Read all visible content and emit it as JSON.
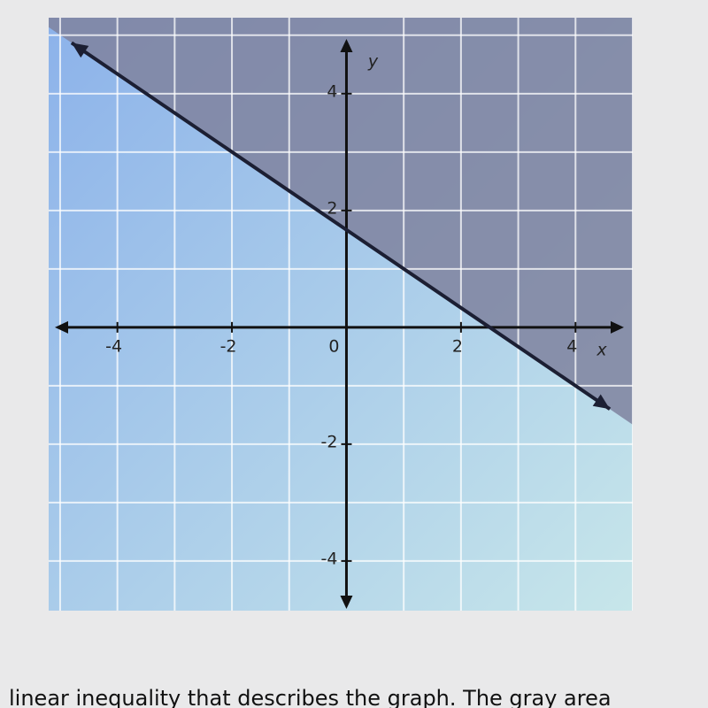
{
  "chart_data": {
    "type": "line",
    "x": [
      -4.8,
      4.6
    ],
    "series": [
      {
        "name": null,
        "color": "#1c1f33",
        "values": [
          4.87,
          -1.4
        ]
      }
    ],
    "shade_above_color": "#7f829f",
    "shade_below_color": "#a4c4e6",
    "xlim": [
      -5.2,
      5
    ],
    "ylim": [
      -4.85,
      5.3
    ],
    "xticks": [
      -4,
      -2,
      2,
      4
    ],
    "yticks": [
      -4,
      -2,
      2,
      4
    ],
    "origin_label": "0",
    "xgrid": [
      -5,
      -4,
      -3,
      -2,
      -1,
      1,
      2,
      3,
      4,
      5
    ],
    "ygrid": [
      -4,
      -3,
      -2,
      -1,
      1,
      2,
      3,
      4,
      5
    ],
    "xlabel": "x",
    "ylabel": "y",
    "grid": true
  },
  "caption": "linear inequality that describes the graph. The gray area"
}
